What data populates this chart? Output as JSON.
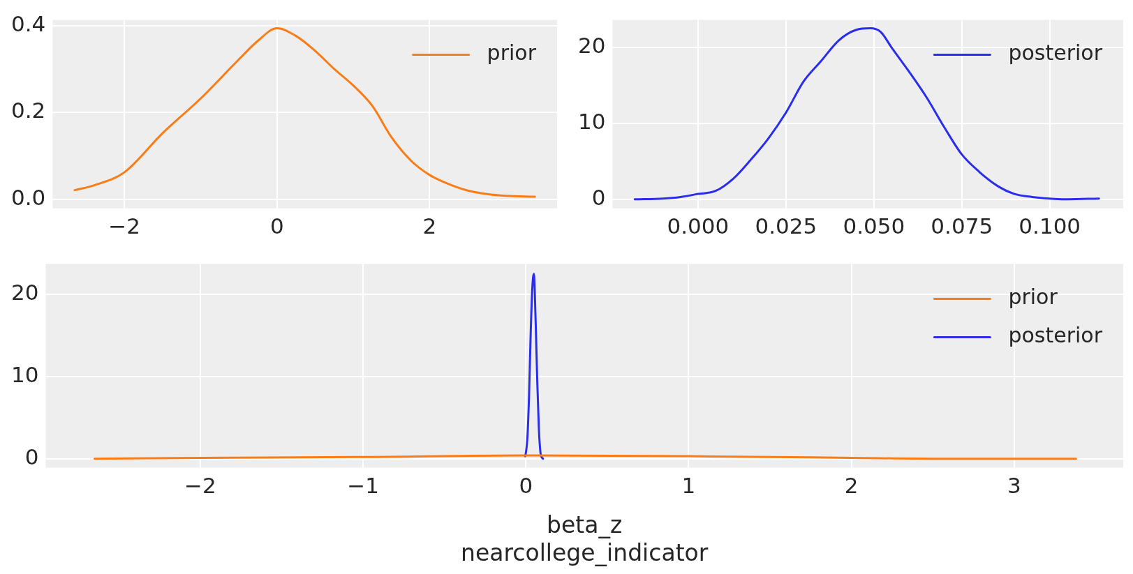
{
  "chart_data": [
    {
      "type": "line",
      "xlim": [
        -2.94,
        3.67
      ],
      "ylim": [
        -0.021,
        0.413
      ],
      "xticks": [
        {
          "value": -2,
          "label": "−2"
        },
        0,
        2
      ],
      "yticks": [
        {
          "value": 0,
          "label": "0.0"
        },
        0.2,
        0.4
      ],
      "grid": true,
      "legend": "top right",
      "series": [
        {
          "name": "prior",
          "color": "#fa7c17",
          "x": [
            -2.65,
            -2.4,
            -2.0,
            -1.5,
            -1.0,
            -0.5,
            -0.25,
            0,
            0.25,
            0.5,
            0.75,
            1.0,
            1.25,
            1.5,
            1.75,
            2.0,
            2.25,
            2.5,
            2.75,
            3.0,
            3.38
          ],
          "values": [
            0.021,
            0.032,
            0.062,
            0.152,
            0.232,
            0.322,
            0.365,
            0.394,
            0.376,
            0.342,
            0.3,
            0.262,
            0.215,
            0.143,
            0.09,
            0.056,
            0.035,
            0.02,
            0.012,
            0.008,
            0.006
          ]
        }
      ]
    },
    {
      "type": "line",
      "xlim": [
        -0.0243,
        0.1209
      ],
      "ylim": [
        -1.2,
        23.6
      ],
      "xticks": [
        {
          "value": 0,
          "label": "0.000"
        },
        0.025,
        {
          "value": 0.05,
          "label": "0.050"
        },
        0.075,
        {
          "value": 0.1,
          "label": "0.100"
        }
      ],
      "yticks": [
        0,
        10,
        20
      ],
      "grid": true,
      "legend": "top right",
      "series": [
        {
          "name": "posterior",
          "color": "#2a2eec",
          "x": [
            -0.018,
            -0.01,
            -0.005,
            0.0,
            0.005,
            0.01,
            0.015,
            0.02,
            0.025,
            0.03,
            0.035,
            0.04,
            0.045,
            0.049,
            0.052,
            0.055,
            0.06,
            0.065,
            0.07,
            0.075,
            0.08,
            0.085,
            0.09,
            0.095,
            0.1,
            0.105,
            0.114
          ],
          "values": [
            0,
            0.1,
            0.3,
            0.7,
            1.1,
            2.7,
            5.2,
            8.0,
            11.4,
            15.5,
            18.2,
            20.9,
            22.3,
            22.5,
            22.0,
            20.0,
            16.8,
            13.4,
            9.5,
            5.9,
            3.6,
            1.8,
            0.7,
            0.3,
            0.1,
            0,
            0.1
          ]
        }
      ]
    },
    {
      "type": "line",
      "xlim": [
        -2.95,
        3.67
      ],
      "ylim": [
        -1.1,
        23.7
      ],
      "xticks": [
        {
          "value": -2,
          "label": "−2"
        },
        {
          "value": -1,
          "label": "−1"
        },
        0,
        1,
        2,
        3
      ],
      "yticks": [
        0,
        10,
        20
      ],
      "grid": true,
      "legend": "top right",
      "xlabel": "beta_z\nnearcollege_indicator",
      "series": [
        {
          "name": "prior",
          "color": "#fa7c17",
          "x": [
            -2.65,
            -2.0,
            -1.0,
            0,
            1.0,
            2.0,
            2.5,
            3.0,
            3.38
          ],
          "values": [
            0,
            0.1,
            0.2,
            0.4,
            0.3,
            0.1,
            0,
            0,
            0
          ]
        },
        {
          "name": "posterior",
          "color": "#2a2eec",
          "x": [
            -0.005,
            0.0,
            0.01,
            0.02,
            0.03,
            0.04,
            0.049,
            0.06,
            0.07,
            0.08,
            0.09,
            0.1,
            0.105
          ],
          "values": [
            0.3,
            0.7,
            2.7,
            8.0,
            15.5,
            20.9,
            22.5,
            16.8,
            9.5,
            3.6,
            0.7,
            0.1,
            0
          ]
        }
      ]
    }
  ]
}
